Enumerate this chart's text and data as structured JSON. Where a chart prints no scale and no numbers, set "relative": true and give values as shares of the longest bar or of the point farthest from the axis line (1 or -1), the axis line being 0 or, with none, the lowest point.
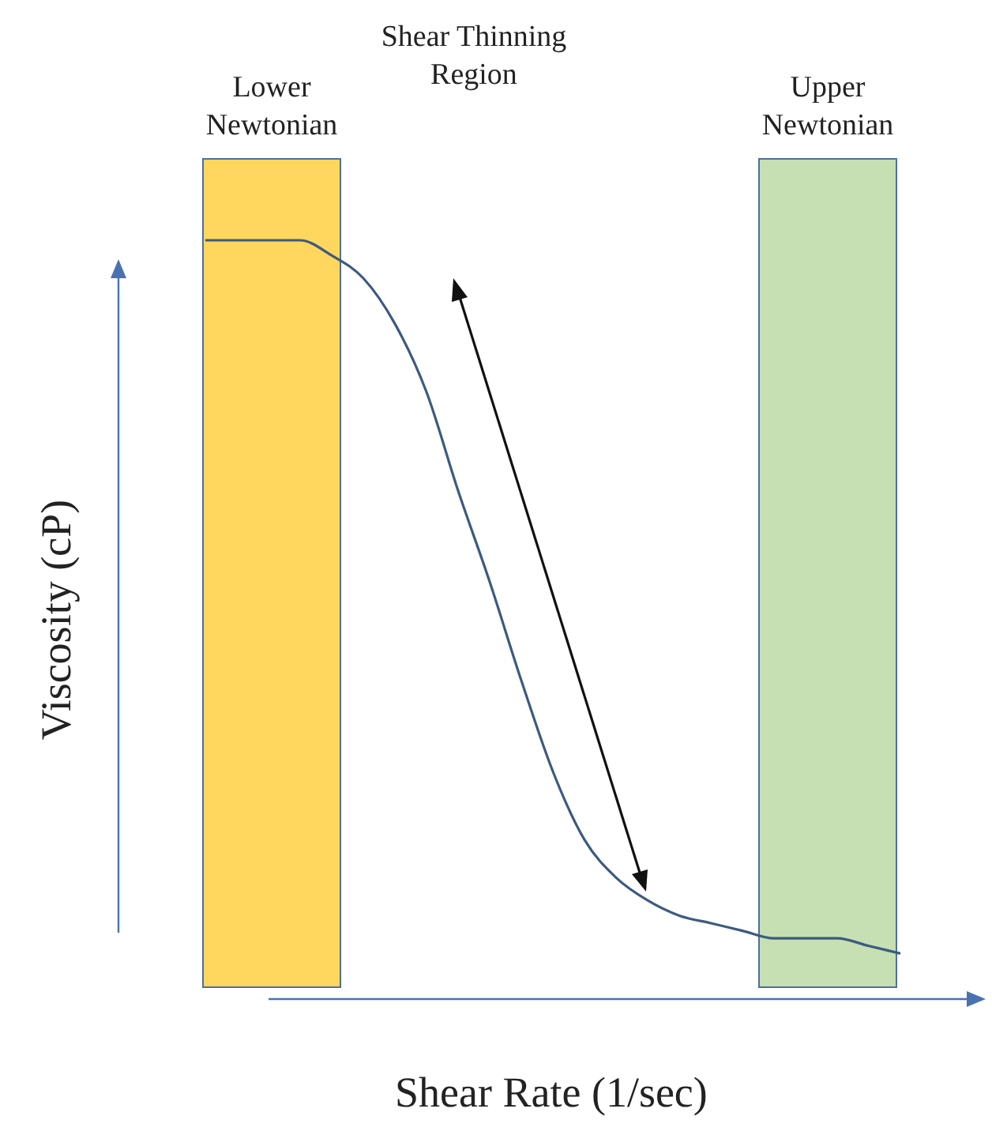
{
  "chart_data": {
    "type": "line",
    "relative": true,
    "xlabel": "Shear Rate (1/sec)",
    "ylabel": "Viscosity (cP)",
    "categories": [
      null,
      null,
      null,
      null,
      null,
      null,
      null,
      null,
      null,
      null,
      null,
      null,
      null,
      null,
      null,
      null,
      null,
      null,
      null,
      null,
      null,
      null,
      null
    ],
    "series": [
      {
        "color": "#3d5a80",
        "values": [
          1,
          1,
          1,
          1,
          0.98,
          0.95,
          0.89,
          0.8,
          0.67,
          0.55,
          0.42,
          0.3,
          0.21,
          0.16,
          0.13,
          0.11,
          0.1,
          0.09,
          0.08,
          0.08,
          0.08,
          0.07,
          0.06
        ]
      }
    ],
    "annotations": [
      "Lower Newtonian",
      "Shear Thinning Region",
      "Upper Newtonian"
    ],
    "marker": "none",
    "line_style": "solid",
    "legend": false
  }
}
